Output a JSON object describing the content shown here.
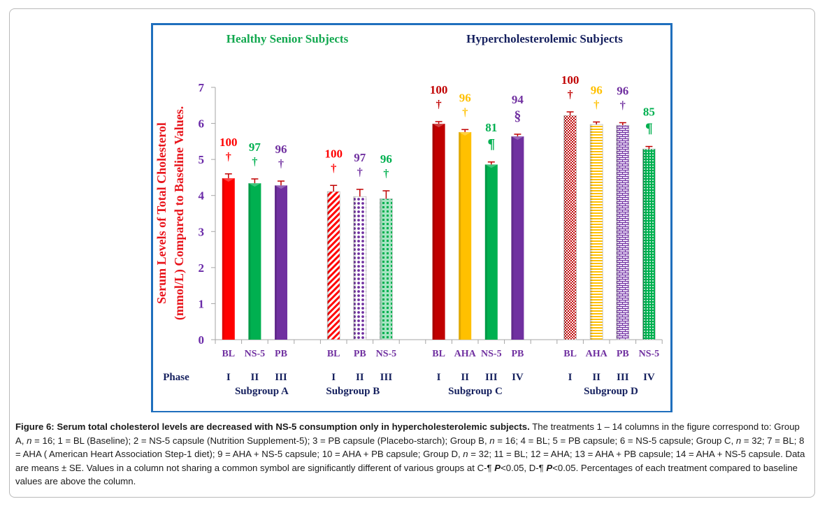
{
  "chart_data": {
    "type": "bar",
    "title_left": "Healthy  Senior  Subjects",
    "title_right": "Hypercholesterolemic Subjects",
    "ylabel_line1": "Serum Levels of  Total Cholesterol",
    "ylabel_line2": "(mmol/L) Compared to  Baseline Values.",
    "ylim": [
      0,
      7
    ],
    "yticks": [
      "0",
      "1",
      "2",
      "3",
      "4",
      "5",
      "6",
      "7"
    ],
    "grid": false,
    "phase_label": "Phase",
    "colors": {
      "title_left": "#12a84f",
      "title_right": "#15205e",
      "ylabel": "#e8141b",
      "ytick": "#6a2aa8",
      "xtick": "#7030a0",
      "phase": "#15205e",
      "error_bar": "#c00000",
      "red": "#ff0000",
      "darkred": "#c00000",
      "green": "#00b050",
      "purple": "#7030a0",
      "yellow": "#ffc000"
    },
    "subgroups": [
      {
        "name": "Subgroup  A",
        "bars": [
          {
            "label": "BL",
            "phase": "I",
            "value": 4.48,
            "se": 0.12,
            "pct": "100",
            "symbol": "†",
            "color": "#ff0000",
            "pattern": "solid"
          },
          {
            "label": "NS-5",
            "phase": "II",
            "value": 4.34,
            "se": 0.12,
            "pct": "97",
            "symbol": "†",
            "color": "#00b050",
            "pattern": "solid"
          },
          {
            "label": "PB",
            "phase": "III",
            "value": 4.28,
            "se": 0.12,
            "pct": "96",
            "symbol": "†",
            "color": "#7030a0",
            "pattern": "solid"
          }
        ]
      },
      {
        "name": "Subgroup  B",
        "bars": [
          {
            "label": "BL",
            "phase": "I",
            "value": 4.11,
            "se": 0.17,
            "pct": "100",
            "symbol": "†",
            "color": "#ff0000",
            "pattern": "diagonal"
          },
          {
            "label": "PB",
            "phase": "II",
            "value": 3.97,
            "se": 0.2,
            "pct": "97",
            "symbol": "†",
            "color": "#7030a0",
            "pattern": "dots"
          },
          {
            "label": "NS-5",
            "phase": "III",
            "value": 3.91,
            "se": 0.22,
            "pct": "96",
            "symbol": "†",
            "color": "#00b050",
            "pattern": "plaid"
          }
        ]
      },
      {
        "name": "Subgroup  C",
        "bars": [
          {
            "label": "BL",
            "phase": "I",
            "value": 5.99,
            "se": 0.06,
            "pct": "100",
            "symbol": "†",
            "color": "#c00000",
            "pattern": "solid"
          },
          {
            "label": "AHA",
            "phase": "II",
            "value": 5.76,
            "se": 0.07,
            "pct": "96",
            "symbol": "†",
            "color": "#ffc000",
            "pattern": "solid"
          },
          {
            "label": "NS-5",
            "phase": "III",
            "value": 4.86,
            "se": 0.07,
            "pct": "81",
            "symbol": "¶",
            "color": "#00b050",
            "pattern": "solid"
          },
          {
            "label": "PB",
            "phase": "IV",
            "value": 5.64,
            "se": 0.06,
            "pct": "94",
            "symbol": "§",
            "color": "#7030a0",
            "pattern": "solid"
          }
        ]
      },
      {
        "name": "Subgroup  D",
        "bars": [
          {
            "label": "BL",
            "phase": "I",
            "value": 6.22,
            "se": 0.1,
            "pct": "100",
            "symbol": "†",
            "color": "#c00000",
            "pattern": "checker"
          },
          {
            "label": "AHA",
            "phase": "II",
            "value": 5.97,
            "se": 0.07,
            "pct": "96",
            "symbol": "†",
            "color": "#ffc000",
            "pattern": "hstripes"
          },
          {
            "label": "PB",
            "phase": "III",
            "value": 5.95,
            "se": 0.07,
            "pct": "96",
            "symbol": "†",
            "color": "#7030a0",
            "pattern": "brick"
          },
          {
            "label": "NS-5",
            "phase": "IV",
            "value": 5.29,
            "se": 0.07,
            "pct": "85",
            "symbol": "¶",
            "color": "#00b050",
            "pattern": "mesh"
          }
        ]
      }
    ]
  },
  "caption": {
    "bold": "Figure 6: Serum total cholesterol levels are decreased with NS-5 consumption only in hypercholesterolemic subjects.",
    "p1": " The treatments 1 – 14 columns in the figure correspond to: Group A, ",
    "n": "n",
    "p2": " = 16; 1 = BL (Baseline); 2 = NS-5 capsule (Nutrition Supplement-5); 3 = PB capsule (Placebo-starch); Group B, ",
    "p3": " = 16; 4 = BL; 5 = PB capsule; 6 = NS-5 capsule; Group C, ",
    "p4": " = 32; 7 = BL; 8 = AHA ( American Heart Association Step-1 diet); 9 = AHA + NS-5 capsule; 10 = AHA + PB capsule; Group D, ",
    "p5": " = 32; 11 = BL; 12 = AHA; 13 = AHA + PB capsule; 14 = AHA + NS-5 capsule. Data are means ± SE. Values in a column not sharing a common symbol are significantly different of various groups at C-¶ ",
    "P": "P",
    "p6": "<0.05, D-¶ ",
    "p7": "<0.05. Percentages of each treatment compared to baseline values are above the column."
  }
}
